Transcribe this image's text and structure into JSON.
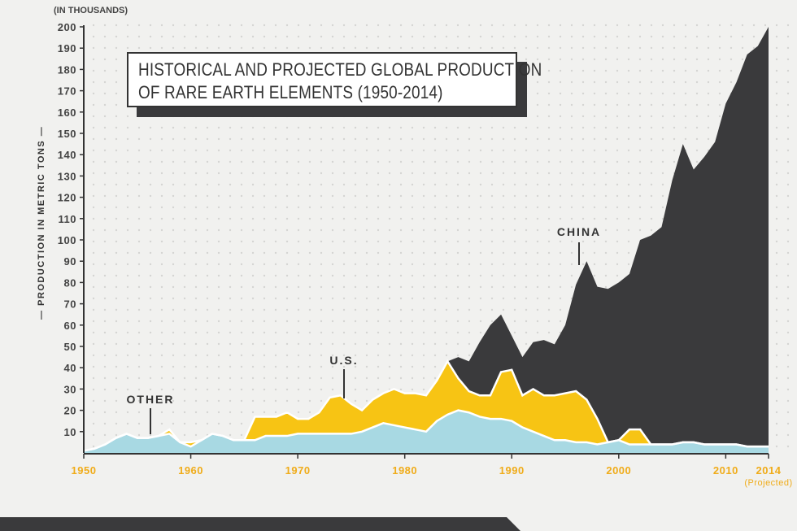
{
  "chart_data": {
    "type": "area",
    "title_line1": "HISTORICAL AND PROJECTED GLOBAL PRODUCTION",
    "title_line2": "OF RARE EARTH ELEMENTS (1950-2014)",
    "ylabel": "— PRODUCTION IN METRIC TONS —",
    "y_unit": "(IN THOUSANDS)",
    "x_tick_labels": [
      "1950",
      "1960",
      "1970",
      "1980",
      "1990",
      "2000",
      "2010",
      "2014"
    ],
    "x_note": "(Projected)",
    "y_ticks": [
      10,
      20,
      30,
      40,
      50,
      60,
      70,
      80,
      90,
      100,
      110,
      120,
      130,
      140,
      150,
      160,
      170,
      180,
      190,
      200
    ],
    "ylim": [
      0,
      200
    ],
    "xlim": [
      1950,
      2014
    ],
    "annotations": {
      "china": "CHINA",
      "us": "U.S.",
      "other": "OTHER"
    },
    "stacking": "stacked",
    "x": [
      1950,
      1951,
      1952,
      1953,
      1954,
      1955,
      1956,
      1957,
      1958,
      1959,
      1960,
      1961,
      1962,
      1963,
      1964,
      1965,
      1966,
      1967,
      1968,
      1969,
      1970,
      1971,
      1972,
      1973,
      1974,
      1975,
      1976,
      1977,
      1978,
      1979,
      1980,
      1981,
      1982,
      1983,
      1984,
      1985,
      1986,
      1987,
      1988,
      1989,
      1990,
      1991,
      1992,
      1993,
      1994,
      1995,
      1996,
      1997,
      1998,
      1999,
      2000,
      2001,
      2002,
      2003,
      2004,
      2005,
      2006,
      2007,
      2008,
      2009,
      2010,
      2011,
      2012,
      2013,
      2014
    ],
    "series": [
      {
        "name": "OTHER",
        "color": "#a8d9e3",
        "values": [
          1,
          2,
          4,
          7,
          9,
          7,
          7,
          8,
          9,
          5,
          3,
          6,
          9,
          8,
          6,
          6,
          6,
          8,
          8,
          8,
          9,
          9,
          9,
          9,
          9,
          9,
          10,
          12,
          14,
          13,
          12,
          11,
          10,
          15,
          18,
          20,
          19,
          17,
          16,
          16,
          15,
          12,
          10,
          8,
          6,
          6,
          5,
          5,
          4,
          5,
          6,
          4,
          4,
          4,
          4,
          4,
          5,
          5,
          4,
          4,
          4,
          4,
          3,
          3,
          3
        ]
      },
      {
        "name": "U.S.",
        "color": "#f7c414",
        "values": [
          0,
          0,
          0,
          0,
          0,
          0,
          0,
          0,
          2,
          0,
          2,
          0,
          0,
          0,
          0,
          0,
          11,
          9,
          9,
          11,
          7,
          7,
          10,
          17,
          18,
          14,
          10,
          13,
          14,
          17,
          16,
          17,
          17,
          19,
          25,
          15,
          10,
          10,
          11,
          22,
          24,
          15,
          20,
          19,
          21,
          22,
          24,
          20,
          12,
          0,
          0,
          7,
          7,
          0,
          0,
          0,
          0,
          0,
          0,
          0,
          0,
          0,
          0,
          0,
          0
        ]
      },
      {
        "name": "CHINA",
        "color": "#3a3a3c",
        "values": [
          0,
          0,
          0,
          0,
          0,
          0,
          0,
          0,
          0,
          0,
          0,
          0,
          0,
          0,
          0,
          0,
          0,
          0,
          0,
          0,
          0,
          0,
          0,
          0,
          0,
          0,
          0,
          0,
          0,
          0,
          0,
          0,
          0,
          0,
          0,
          10,
          14,
          25,
          33,
          27,
          16,
          18,
          22,
          26,
          24,
          32,
          50,
          65,
          62,
          72,
          74,
          73,
          89,
          98,
          102,
          124,
          140,
          128,
          135,
          142,
          160,
          170,
          184,
          188,
          197
        ]
      }
    ]
  }
}
